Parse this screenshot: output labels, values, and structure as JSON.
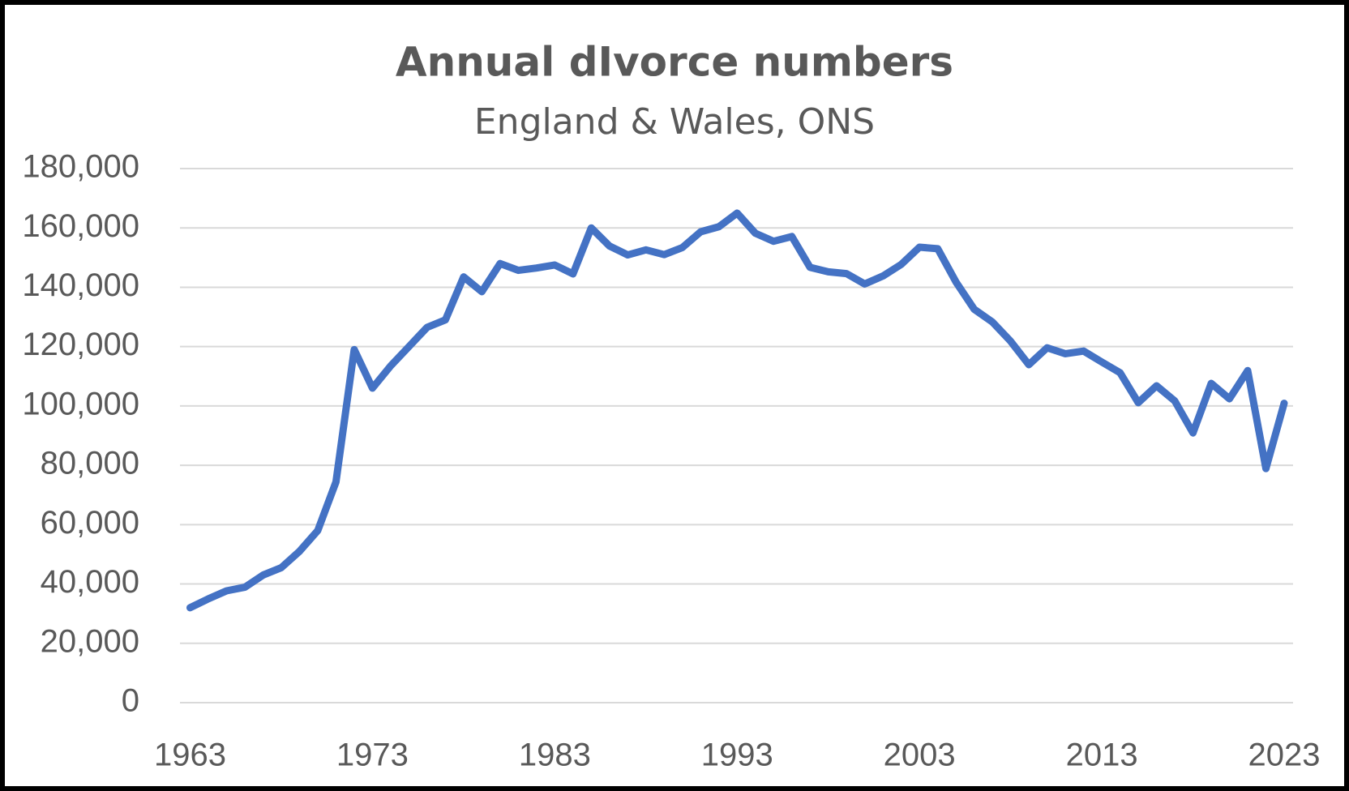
{
  "chart_data": {
    "type": "line",
    "title": "Annual dIvorce numbers",
    "subtitle": "England & Wales, ONS",
    "x": [
      1963,
      1964,
      1965,
      1966,
      1967,
      1968,
      1969,
      1970,
      1971,
      1972,
      1973,
      1974,
      1975,
      1976,
      1977,
      1978,
      1979,
      1980,
      1981,
      1982,
      1983,
      1984,
      1985,
      1986,
      1987,
      1988,
      1989,
      1990,
      1991,
      1992,
      1993,
      1994,
      1995,
      1996,
      1997,
      1998,
      1999,
      2000,
      2001,
      2002,
      2003,
      2004,
      2005,
      2006,
      2007,
      2008,
      2009,
      2010,
      2011,
      2012,
      2013,
      2014,
      2015,
      2016,
      2017,
      2018,
      2019,
      2020,
      2021,
      2022,
      2023
    ],
    "values": [
      32000,
      35000,
      37700,
      38900,
      43000,
      45500,
      51000,
      58000,
      74400,
      119000,
      106000,
      113500,
      120000,
      126500,
      129000,
      143500,
      138500,
      148000,
      145700,
      146500,
      147500,
      144500,
      160000,
      153900,
      150900,
      152600,
      151000,
      153400,
      158700,
      160400,
      165000,
      158200,
      155500,
      157100,
      146700,
      145200,
      144600,
      141100,
      143800,
      147700,
      153500,
      153000,
      141800,
      132600,
      128300,
      121800,
      113900,
      119600,
      117600,
      118500,
      114800,
      111200,
      101100,
      106800,
      101700,
      90900,
      107600,
      102400,
      111900,
      78900,
      100900
    ],
    "color": "#4472c4",
    "xlim": [
      1963,
      2023
    ],
    "xticks": [
      1963,
      1973,
      1983,
      1993,
      2003,
      2013,
      2023
    ],
    "ylim": [
      0,
      180000
    ],
    "yticks": [
      0,
      {
        "value": 20000,
        "label": "20,000"
      },
      {
        "value": 40000,
        "label": "40,000"
      },
      {
        "value": 60000,
        "label": "60,000"
      },
      {
        "value": 80000,
        "label": "80,000"
      },
      {
        "value": 100000,
        "label": "100,000"
      },
      {
        "value": 120000,
        "label": "120,000"
      },
      {
        "value": 140000,
        "label": "140,000"
      },
      {
        "value": 160000,
        "label": "160,000"
      },
      {
        "value": 180000,
        "label": "180,000"
      }
    ],
    "grid": true
  }
}
